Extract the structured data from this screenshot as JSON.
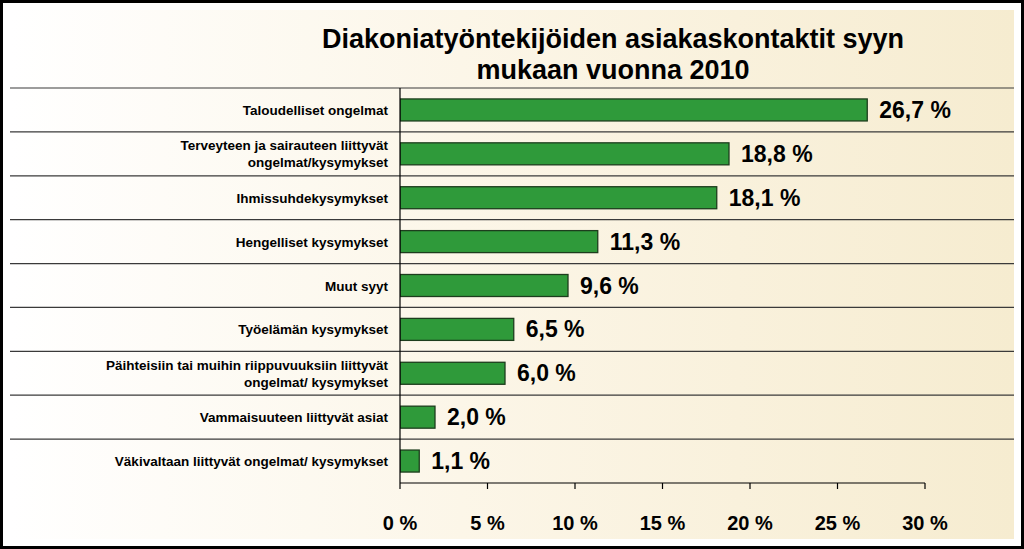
{
  "chart_data": {
    "type": "bar",
    "orientation": "horizontal",
    "title": "Diakoniatyöntekijöiden asiakaskontaktit syyn\nmukaan vuonna 2010",
    "categories": [
      "Taloudelliset ongelmat",
      "Terveyteen ja sairauteen liittyvät\nongelmat/kysymykset",
      "Ihmissuhdekysymykset",
      "Hengelliset kysymykset",
      "Muut syyt",
      "Työelämän kysymykset",
      "Päihteisiin tai muihin riippuvuuksiin liittyvät\nongelmat/ kysymykset",
      "Vammaisuuteen liittyvät asiat",
      "Väkivaltaan liittyvät ongelmat/ kysymykset"
    ],
    "values": [
      26.7,
      18.8,
      18.1,
      11.3,
      9.6,
      6.5,
      6.0,
      2.0,
      1.1
    ],
    "value_labels": [
      "26,7 %",
      "18,8 %",
      "18,1 %",
      "11,3 %",
      "9,6 %",
      "6,5 %",
      "6,0 %",
      "2,0 %",
      "1,1 %"
    ],
    "color": "#2f9a3a",
    "xlim": [
      0,
      30
    ],
    "xticks": [
      {
        "value": 0,
        "label": "0 %"
      },
      {
        "value": 5,
        "label": "5 %"
      },
      {
        "value": 10,
        "label": "10 %"
      },
      {
        "value": 15,
        "label": "15 %"
      },
      {
        "value": 20,
        "label": "20 %"
      },
      {
        "value": 25,
        "label": "25 %"
      },
      {
        "value": 30,
        "label": "30 %"
      }
    ],
    "grid": false,
    "data_labels": true
  }
}
